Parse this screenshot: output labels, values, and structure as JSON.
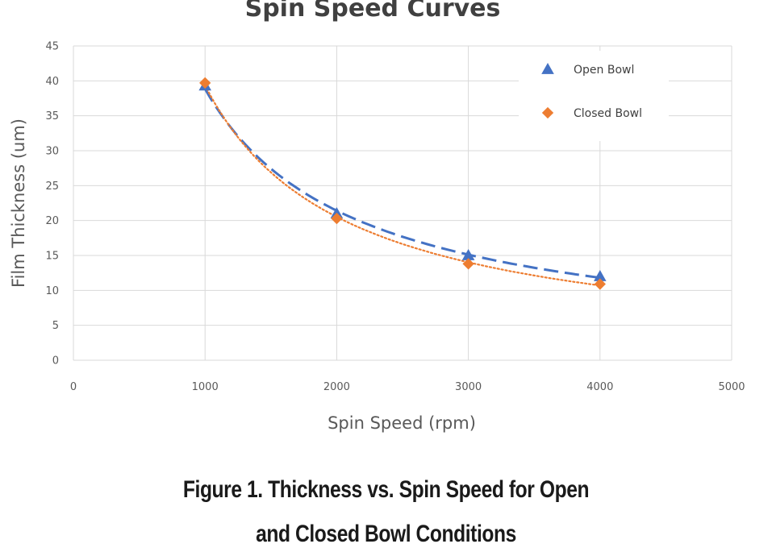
{
  "caption": {
    "line1": "Figure 1. Thickness vs. Spin Speed for Open",
    "line2": "and Closed Bowl Conditions"
  },
  "chart_data": {
    "type": "scatter",
    "title": "Spin Speed Curves",
    "xlabel": "Spin Speed (rpm)",
    "ylabel": "Film Thickness (um)",
    "xlim": [
      0,
      5000
    ],
    "ylim": [
      0,
      45
    ],
    "xticks": [
      0,
      1000,
      2000,
      3000,
      4000,
      5000
    ],
    "yticks": [
      0,
      5,
      10,
      15,
      20,
      25,
      30,
      35,
      40,
      45
    ],
    "grid": true,
    "legend_position": "top-right",
    "series": [
      {
        "name": "Open Bowl",
        "marker": "triangle",
        "color": "#4472c4",
        "trendline": "power",
        "trendline_style": "dashed",
        "x": [
          1000,
          2000,
          3000,
          4000
        ],
        "y": [
          39.3,
          21.0,
          15.0,
          12.0
        ]
      },
      {
        "name": "Closed Bowl",
        "marker": "diamond",
        "color": "#ed7d31",
        "trendline": "power",
        "trendline_style": "dotted",
        "x": [
          1000,
          2000,
          3000,
          4000
        ],
        "y": [
          39.7,
          20.3,
          13.8,
          10.9
        ]
      }
    ]
  }
}
